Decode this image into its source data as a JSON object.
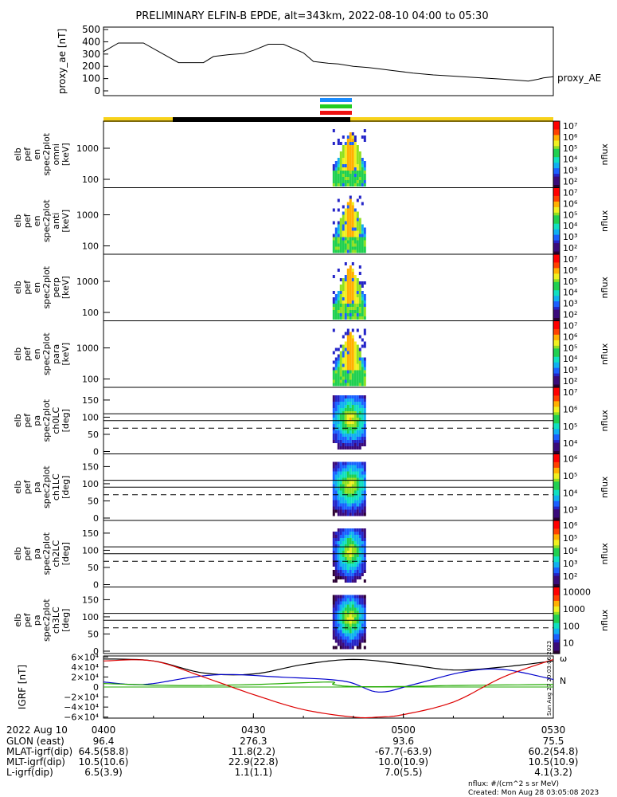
{
  "title": "PRELIMINARY ELFIN-B EPDE, alt=343km, 2022-08-10 04:00 to 05:30",
  "colors": {
    "bar_yellow": "#f7d21a",
    "bar_black": "#000000",
    "mark_blue": "#1a8cff",
    "mark_green": "#22cc22",
    "mark_red": "#ee1111",
    "bx": "#000000",
    "by": "#0000cc",
    "bz": "#22aa00",
    "bmag": "#dd0000"
  },
  "chart_data": [
    {
      "type": "line",
      "name": "proxy_ae",
      "ylabel": "proxy_ae [nT]",
      "legend": "proxy_AE",
      "yticks": [
        "500",
        "400",
        "300",
        "200",
        "100",
        "0"
      ],
      "ylim": [
        0,
        520
      ],
      "x": [
        0,
        3,
        8,
        15,
        20,
        22,
        25,
        28,
        30,
        33,
        36,
        40,
        42,
        45,
        47,
        50,
        53,
        55,
        58,
        62,
        66,
        70,
        74,
        78,
        82,
        85,
        87,
        88,
        90
      ],
      "values": [
        320,
        390,
        390,
        230,
        230,
        280,
        295,
        305,
        330,
        380,
        380,
        310,
        240,
        225,
        220,
        200,
        190,
        180,
        165,
        145,
        130,
        120,
        110,
        100,
        90,
        80,
        95,
        105,
        115
      ]
    },
    {
      "type": "heatmap",
      "name": "energy_spectrograms",
      "panels": [
        {
          "ylabel": "elb pef en spec2plot omni [keV]",
          "yticks": [
            "1000",
            "100"
          ]
        },
        {
          "ylabel": "elb pef en spec2plot anti [keV]",
          "yticks": [
            "1000",
            "100"
          ]
        },
        {
          "ylabel": "elb pef en spec2plot perp [keV]",
          "yticks": [
            "1000",
            "100"
          ]
        },
        {
          "ylabel": "elb pef en spec2plot para [keV]",
          "yticks": [
            "1000",
            "100"
          ]
        }
      ],
      "cbar_label": "nflux",
      "cbar_ticks": [
        "10⁷",
        "10⁶",
        "10⁵",
        "10⁴",
        "10³",
        "10²"
      ],
      "active_minutes": [
        46,
        52
      ]
    },
    {
      "type": "heatmap",
      "name": "pitch_angle_spectrograms",
      "panels": [
        {
          "ylabel": "elb pef pa spec2plot ch0LC [deg]",
          "cbar_ticks": [
            "10⁷",
            "10⁶",
            "10⁵",
            "10⁴"
          ]
        },
        {
          "ylabel": "elb pef pa spec2plot ch1LC [deg]",
          "cbar_ticks": [
            "10⁶",
            "10⁵",
            "10⁴",
            "10³"
          ]
        },
        {
          "ylabel": "elb pef pa spec2plot ch2LC [deg]",
          "cbar_ticks": [
            "10⁶",
            "10⁵",
            "10⁴",
            "10³",
            "10²"
          ]
        },
        {
          "ylabel": "elb pef pa spec2plot ch3LC [deg]",
          "cbar_ticks": [
            "10000",
            "1000",
            "100",
            "10"
          ]
        }
      ],
      "yticks": [
        "150",
        "100",
        "50",
        "0"
      ],
      "ylim": [
        0,
        180
      ],
      "lines_deg": [
        110,
        90
      ],
      "dashed_deg": 68,
      "cbar_label": "nflux",
      "active_minutes": [
        46,
        52
      ]
    },
    {
      "type": "line",
      "name": "igrf",
      "ylabel": "IGRF [nT]",
      "yticks": [
        "6×10⁴",
        "4×10⁴",
        "2×10⁴",
        "0",
        "−2×10⁴",
        "−4×10⁴",
        "−6×10⁴"
      ],
      "ylim": [
        -62000,
        62000
      ],
      "series": [
        {
          "name": "X",
          "x": [
            0,
            10,
            20,
            30,
            40,
            50,
            60,
            70,
            80,
            90
          ],
          "values": [
            56000,
            52000,
            28000,
            26000,
            45000,
            55000,
            46000,
            34000,
            40000,
            52000
          ]
        },
        {
          "name": "Y",
          "x": [
            0,
            8,
            18,
            25,
            35,
            48,
            55,
            62,
            72,
            80,
            90
          ],
          "values": [
            10000,
            5000,
            20000,
            25000,
            20000,
            12000,
            -10000,
            5000,
            30000,
            35000,
            15000
          ]
        },
        {
          "name": "Z",
          "x": [
            0,
            15,
            30,
            45,
            46,
            50,
            60,
            70,
            90
          ],
          "values": [
            7000,
            3000,
            5000,
            10000,
            5000,
            1000,
            1000,
            3000,
            5000
          ]
        },
        {
          "name": "|B|",
          "x": [
            0,
            10,
            20,
            30,
            40,
            50,
            55,
            60,
            70,
            80,
            90
          ],
          "values": [
            52000,
            52000,
            20000,
            -15000,
            -45000,
            -60000,
            -60000,
            -55000,
            -30000,
            20000,
            55000
          ]
        }
      ],
      "right_labels": [
        "N",
        "ω"
      ]
    }
  ],
  "orbit": {
    "minutes": [
      0,
      30,
      60,
      90
    ],
    "time_labels": [
      "0400",
      "0430",
      "0500",
      "0530"
    ],
    "date": "2022 Aug 10",
    "rows": [
      {
        "label": "GLON (east)",
        "values": [
          "96.4",
          "276.3",
          "93.6",
          "75.5"
        ]
      },
      {
        "label": "MLAT-igrf(dip)",
        "values": [
          "64.5(58.8)",
          "11.8(2.2)",
          "-67.7(-63.9)",
          "60.2(54.8)"
        ]
      },
      {
        "label": "MLT-igrf(dip)",
        "values": [
          "10.5(10.6)",
          "22.9(22.8)",
          "10.0(10.9)",
          "10.5(10.9)"
        ]
      },
      {
        "label": "L-igrf(dip)",
        "values": [
          "6.5(3.9)",
          "1.1(1.1)",
          "7.0(5.5)",
          "4.1(3.2)"
        ]
      }
    ]
  },
  "footer": {
    "units": "nflux: #/(cm^2 s sr MeV)",
    "created": "Created: Mon Aug 28 03:05:08 2023",
    "vertical_stamp": "Sun Aug 27 20:03:06 2023"
  }
}
